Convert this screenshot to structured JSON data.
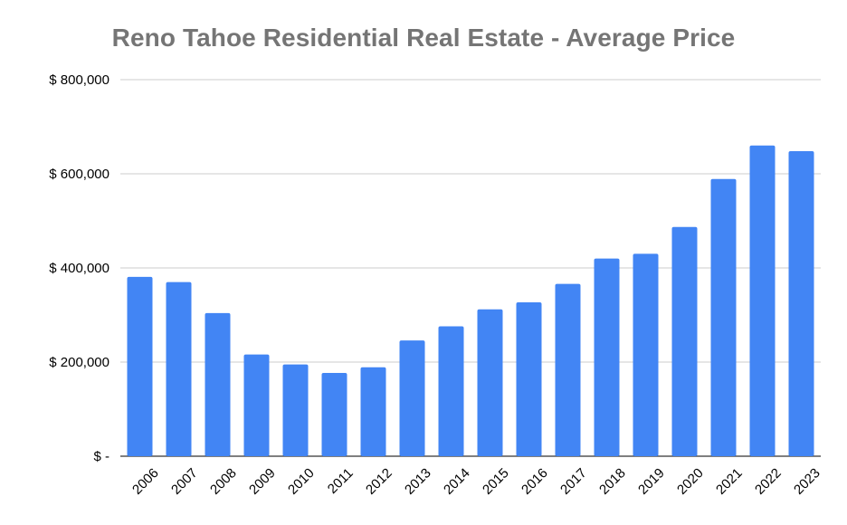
{
  "chart_data": {
    "type": "bar",
    "title": "Reno Tahoe Residential Real Estate - Average Price",
    "xlabel": "",
    "ylabel": "",
    "categories": [
      "2006",
      "2007",
      "2008",
      "2009",
      "2010",
      "2011",
      "2012",
      "2013",
      "2014",
      "2015",
      "2016",
      "2017",
      "2018",
      "2019",
      "2020",
      "2021",
      "2022",
      "2023"
    ],
    "values": [
      381000,
      370000,
      304000,
      216000,
      195000,
      177000,
      189000,
      246000,
      276000,
      312000,
      327000,
      366000,
      420000,
      430000,
      487000,
      589000,
      660000,
      648000
    ],
    "ylim": [
      0,
      800000
    ],
    "yticks": [
      0,
      200000,
      400000,
      600000,
      800000
    ],
    "ytick_labels": [
      "$ -",
      "$ 200,000",
      "$ 400,000",
      "$ 600,000",
      "$ 800,000"
    ],
    "grid": true,
    "legend": "none",
    "colors": {
      "bar": "#4285f4",
      "grid": "#cccccc",
      "title": "#757575"
    }
  }
}
